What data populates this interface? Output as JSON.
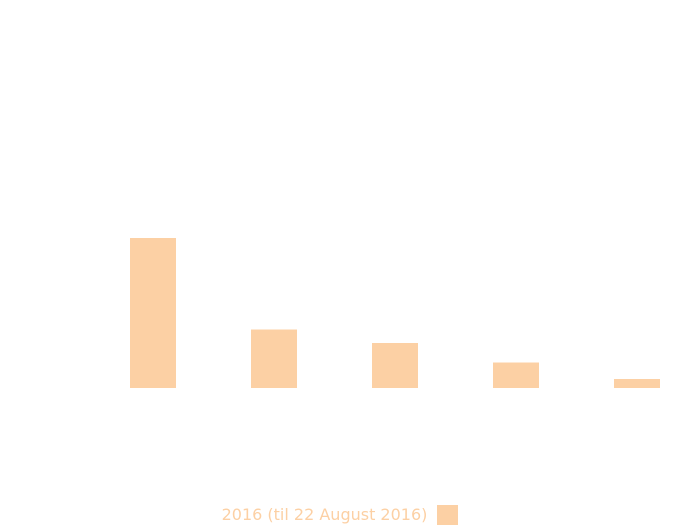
{
  "chart_data": {
    "type": "bar",
    "categories": [
      "",
      "",
      "",
      "",
      ""
    ],
    "series": [
      {
        "name": "2016 (til 22 August 2016)",
        "values": [
          100,
          39,
          30,
          17,
          6
        ]
      }
    ],
    "title": "",
    "xlabel": "",
    "ylabel": "",
    "ylim": [
      0,
      100
    ],
    "grid": false,
    "legend_position": "bottom",
    "colors": {
      "bar": "#fcd0a4",
      "legend_text": "#fcd0a4"
    }
  }
}
